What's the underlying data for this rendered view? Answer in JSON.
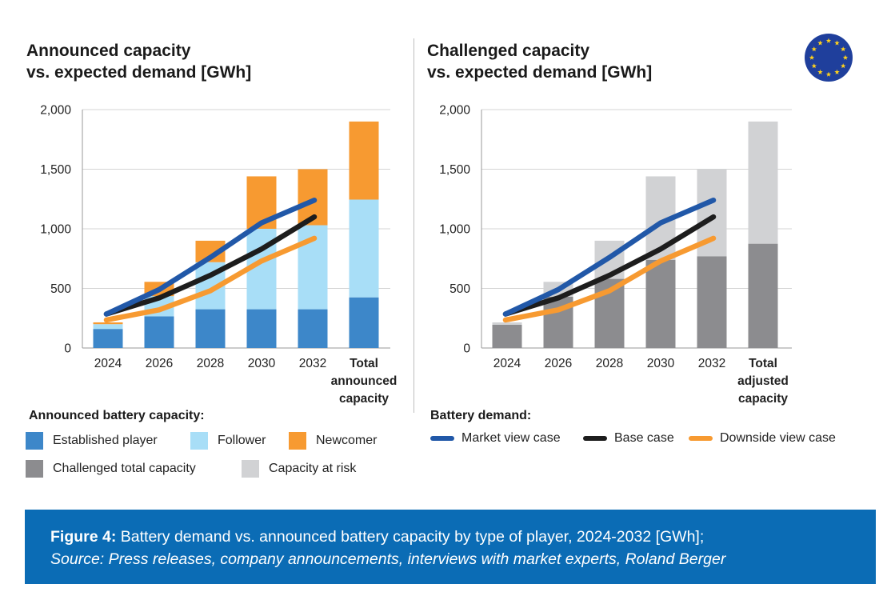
{
  "left_title": {
    "line1": "Announced capacity",
    "line2": "vs. expected demand [GWh]"
  },
  "right_title": {
    "line1": "Challenged capacity",
    "line2": "vs. expected demand [GWh]"
  },
  "legend": {
    "capacity_title": "Announced battery capacity:",
    "established": "Established player",
    "follower": "Follower",
    "newcomer": "Newcomer",
    "challenged": "Challenged total capacity",
    "at_risk": "Capacity at risk",
    "demand_title": "Battery demand:",
    "market": "Market view case",
    "base": "Base case",
    "downside": "Downside view case"
  },
  "caption": {
    "label": "Figure 4:",
    "text": " Battery demand vs. announced battery capacity by type of player, 2024-2032 [GWh];",
    "source": "Source: Press releases, company announcements, interviews with market experts, Roland Berger"
  },
  "colors": {
    "established": "#3d87c9",
    "follower": "#a8def7",
    "newcomer": "#f79a31",
    "challenged": "#8c8c8f",
    "at_risk": "#d1d2d4",
    "market": "#2158a8",
    "base": "#1d1d1d",
    "downside": "#f79a31",
    "caption_bg": "#0b6cb5",
    "flag_blue": "#1f3f9c",
    "flag_star": "#ffd21c"
  },
  "chart_data": [
    {
      "type": "bar",
      "title": "Announced capacity vs. expected demand [GWh]",
      "stacked": true,
      "categories": [
        "2024",
        "2026",
        "2028",
        "2030",
        "2032",
        "Total announced capacity"
      ],
      "category_labels": [
        [
          "2024"
        ],
        [
          "2026"
        ],
        [
          "2028"
        ],
        [
          "2030"
        ],
        [
          "2032"
        ],
        [
          "Total",
          "announced",
          "capacity"
        ]
      ],
      "ylim": [
        0,
        2000
      ],
      "yticks": [
        0,
        500,
        1000,
        1500,
        2000
      ],
      "ytick_labels": [
        "0",
        "500",
        "1,000",
        "1,500",
        "2,000"
      ],
      "grid": true,
      "series": [
        {
          "name": "Established player",
          "values": [
            160,
            265,
            325,
            325,
            325,
            425
          ]
        },
        {
          "name": "Follower",
          "values": [
            40,
            170,
            395,
            675,
            705,
            820
          ]
        },
        {
          "name": "Newcomer",
          "values": [
            15,
            120,
            180,
            440,
            470,
            655
          ]
        }
      ],
      "lines": [
        {
          "name": "Market view case",
          "values": [
            285,
            490,
            760,
            1050,
            1240
          ]
        },
        {
          "name": "Base case",
          "values": [
            285,
            420,
            610,
            830,
            1100
          ]
        },
        {
          "name": "Downside view case",
          "values": [
            235,
            320,
            480,
            730,
            920
          ]
        }
      ]
    },
    {
      "type": "bar",
      "title": "Challenged capacity vs. expected demand [GWh]",
      "stacked": true,
      "categories": [
        "2024",
        "2026",
        "2028",
        "2030",
        "2032",
        "Total adjusted capacity"
      ],
      "category_labels": [
        [
          "2024"
        ],
        [
          "2026"
        ],
        [
          "2028"
        ],
        [
          "2030"
        ],
        [
          "2032"
        ],
        [
          "Total",
          "adjusted",
          "capacity"
        ]
      ],
      "ylim": [
        0,
        2000
      ],
      "yticks": [
        0,
        500,
        1000,
        1500,
        2000
      ],
      "ytick_labels": [
        "0",
        "500",
        "1,000",
        "1,500",
        "2,000"
      ],
      "grid": true,
      "series": [
        {
          "name": "Challenged total capacity",
          "values": [
            195,
            430,
            580,
            740,
            770,
            875
          ]
        },
        {
          "name": "Capacity at risk",
          "values": [
            20,
            125,
            320,
            700,
            730,
            1025
          ]
        }
      ],
      "lines": [
        {
          "name": "Market view case",
          "values": [
            285,
            490,
            760,
            1050,
            1240
          ]
        },
        {
          "name": "Base case",
          "values": [
            285,
            420,
            610,
            830,
            1100
          ]
        },
        {
          "name": "Downside view case",
          "values": [
            235,
            320,
            480,
            730,
            920
          ]
        }
      ]
    }
  ]
}
